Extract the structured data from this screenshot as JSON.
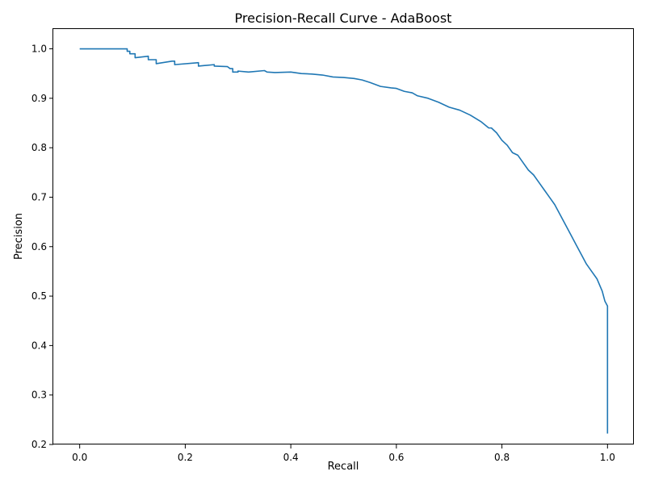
{
  "chart_data": {
    "type": "line",
    "title": "Precision-Recall Curve - AdaBoost",
    "xlabel": "Recall",
    "ylabel": "Precision",
    "xlim": [
      -0.05,
      1.05
    ],
    "ylim": [
      0.2,
      1.04
    ],
    "xticks": [
      "0.0",
      "0.2",
      "0.4",
      "0.6",
      "0.8",
      "1.0"
    ],
    "yticks": [
      "0.2",
      "0.3",
      "0.4",
      "0.5",
      "0.6",
      "0.7",
      "0.8",
      "0.9",
      "1.0"
    ],
    "grid": false,
    "colors": {
      "line": "#1f77b4"
    },
    "series": [
      {
        "x": [
          0.0,
          0.09,
          0.09,
          0.095,
          0.095,
          0.105,
          0.105,
          0.13,
          0.13,
          0.145,
          0.145,
          0.175,
          0.18,
          0.18,
          0.225,
          0.225,
          0.255,
          0.255,
          0.28,
          0.285,
          0.29,
          0.29,
          0.3,
          0.3,
          0.32,
          0.35,
          0.355,
          0.37,
          0.4,
          0.42,
          0.44,
          0.46,
          0.48,
          0.5,
          0.52,
          0.535,
          0.55,
          0.57,
          0.59,
          0.6,
          0.615,
          0.63,
          0.64,
          0.66,
          0.68,
          0.7,
          0.72,
          0.74,
          0.76,
          0.775,
          0.78,
          0.79,
          0.8,
          0.81,
          0.82,
          0.83,
          0.84,
          0.85,
          0.86,
          0.87,
          0.88,
          0.89,
          0.9,
          0.91,
          0.92,
          0.93,
          0.94,
          0.95,
          0.96,
          0.97,
          0.98,
          0.99,
          0.995,
          1.0,
          1.0
        ],
        "y": [
          1.0,
          1.0,
          0.995,
          0.995,
          0.99,
          0.99,
          0.982,
          0.985,
          0.978,
          0.978,
          0.97,
          0.975,
          0.975,
          0.968,
          0.972,
          0.965,
          0.968,
          0.965,
          0.964,
          0.96,
          0.96,
          0.953,
          0.953,
          0.955,
          0.953,
          0.956,
          0.953,
          0.952,
          0.953,
          0.95,
          0.949,
          0.947,
          0.943,
          0.942,
          0.94,
          0.937,
          0.932,
          0.924,
          0.921,
          0.92,
          0.914,
          0.911,
          0.905,
          0.9,
          0.892,
          0.882,
          0.876,
          0.866,
          0.853,
          0.84,
          0.84,
          0.83,
          0.815,
          0.805,
          0.79,
          0.785,
          0.77,
          0.755,
          0.745,
          0.73,
          0.715,
          0.7,
          0.685,
          0.665,
          0.645,
          0.625,
          0.605,
          0.585,
          0.565,
          0.55,
          0.535,
          0.51,
          0.49,
          0.48,
          0.222
        ]
      }
    ]
  }
}
